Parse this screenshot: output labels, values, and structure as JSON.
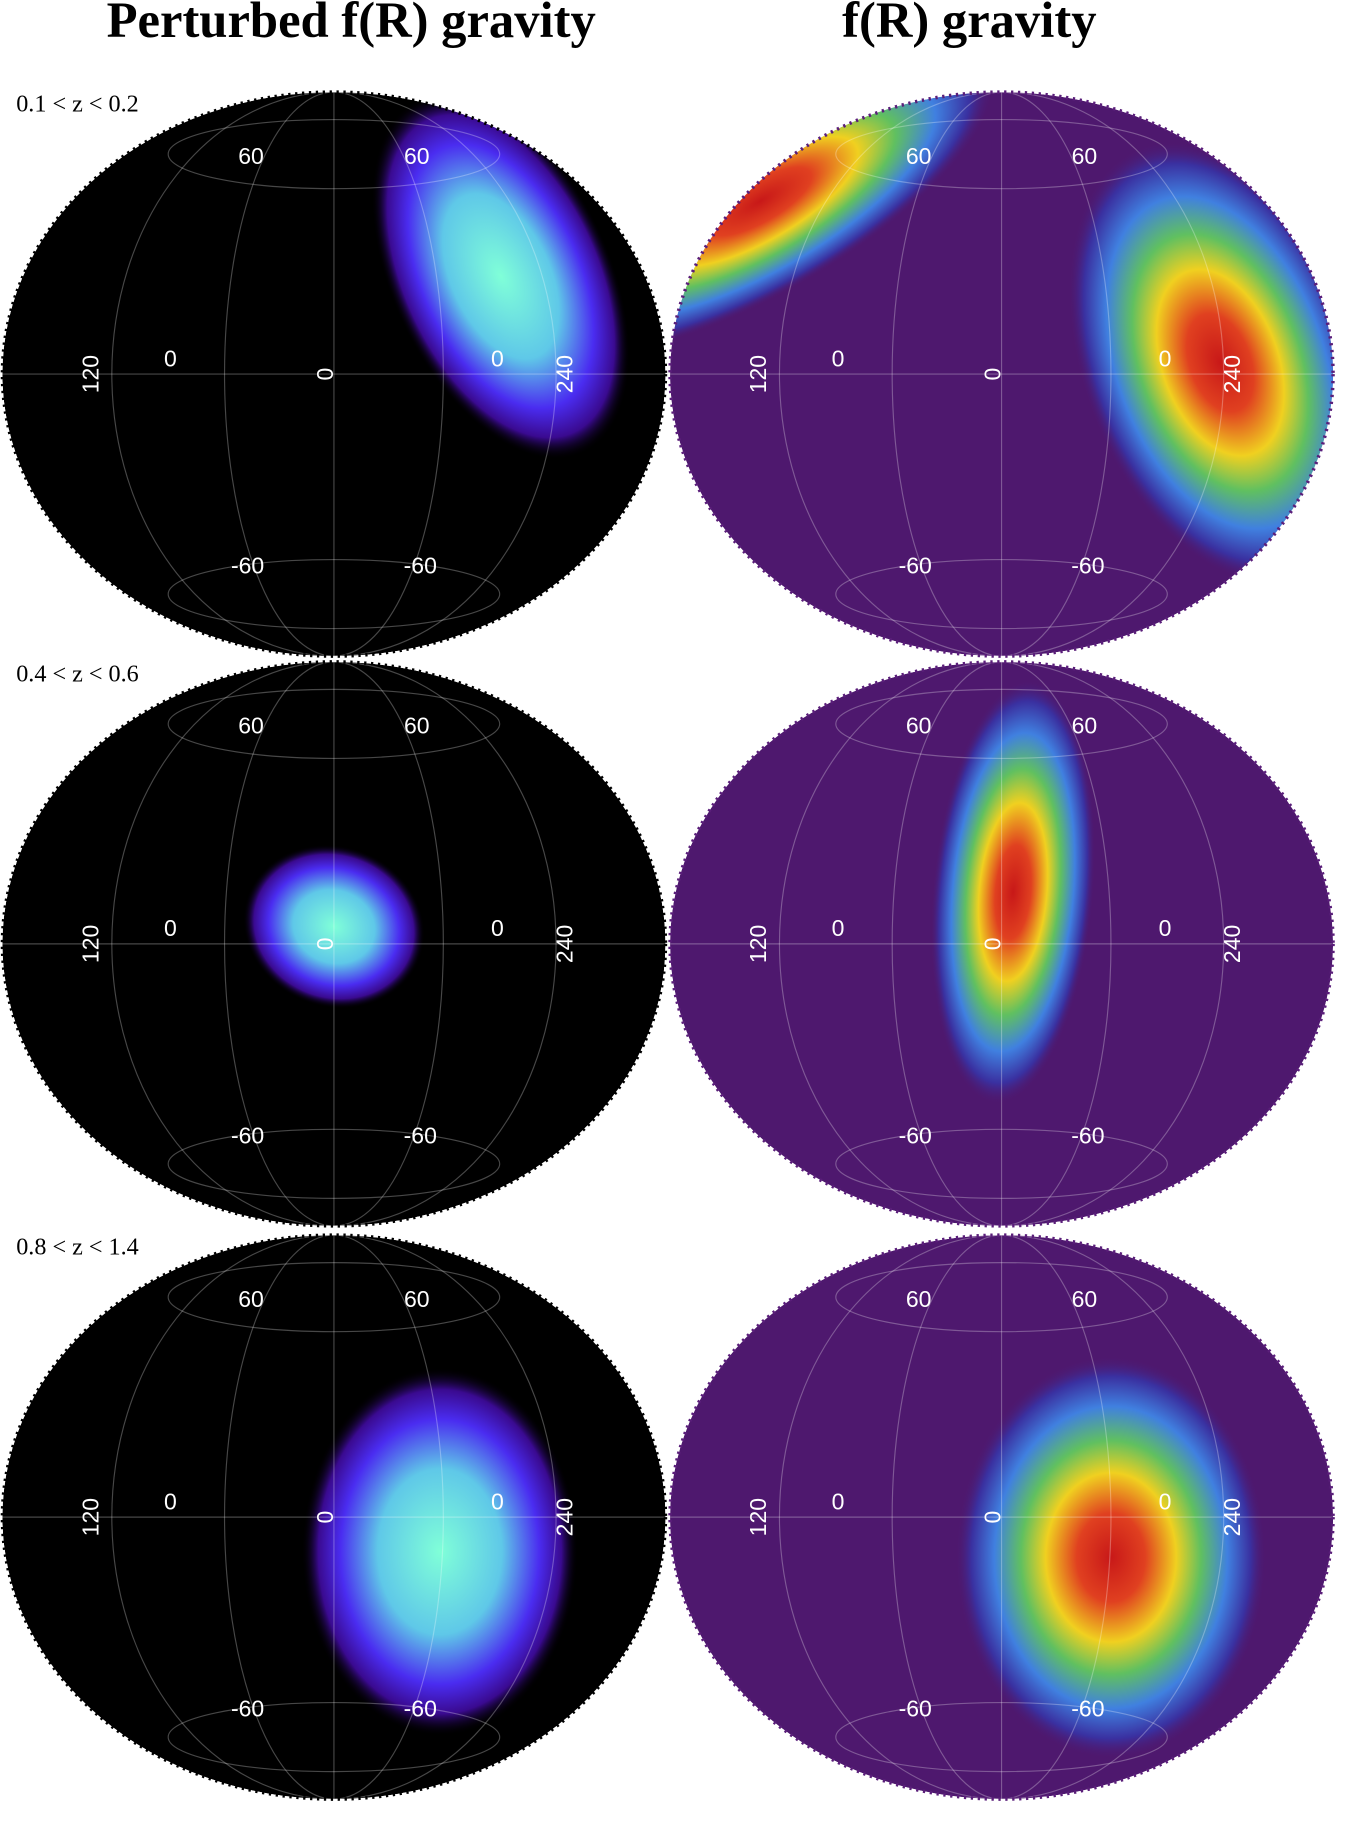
{
  "columns": [
    "Perturbed f(R) gravity",
    "f(R) gravity"
  ],
  "rows": [
    {
      "label": "0.1 < z < 0.2"
    },
    {
      "label": "0.4 < z < 0.6"
    },
    {
      "label": "0.8 < z < 1.4"
    }
  ],
  "grid_labels": [
    "60",
    "60",
    "120",
    "0",
    "0",
    "0",
    "240",
    "-60",
    "-60"
  ]
}
